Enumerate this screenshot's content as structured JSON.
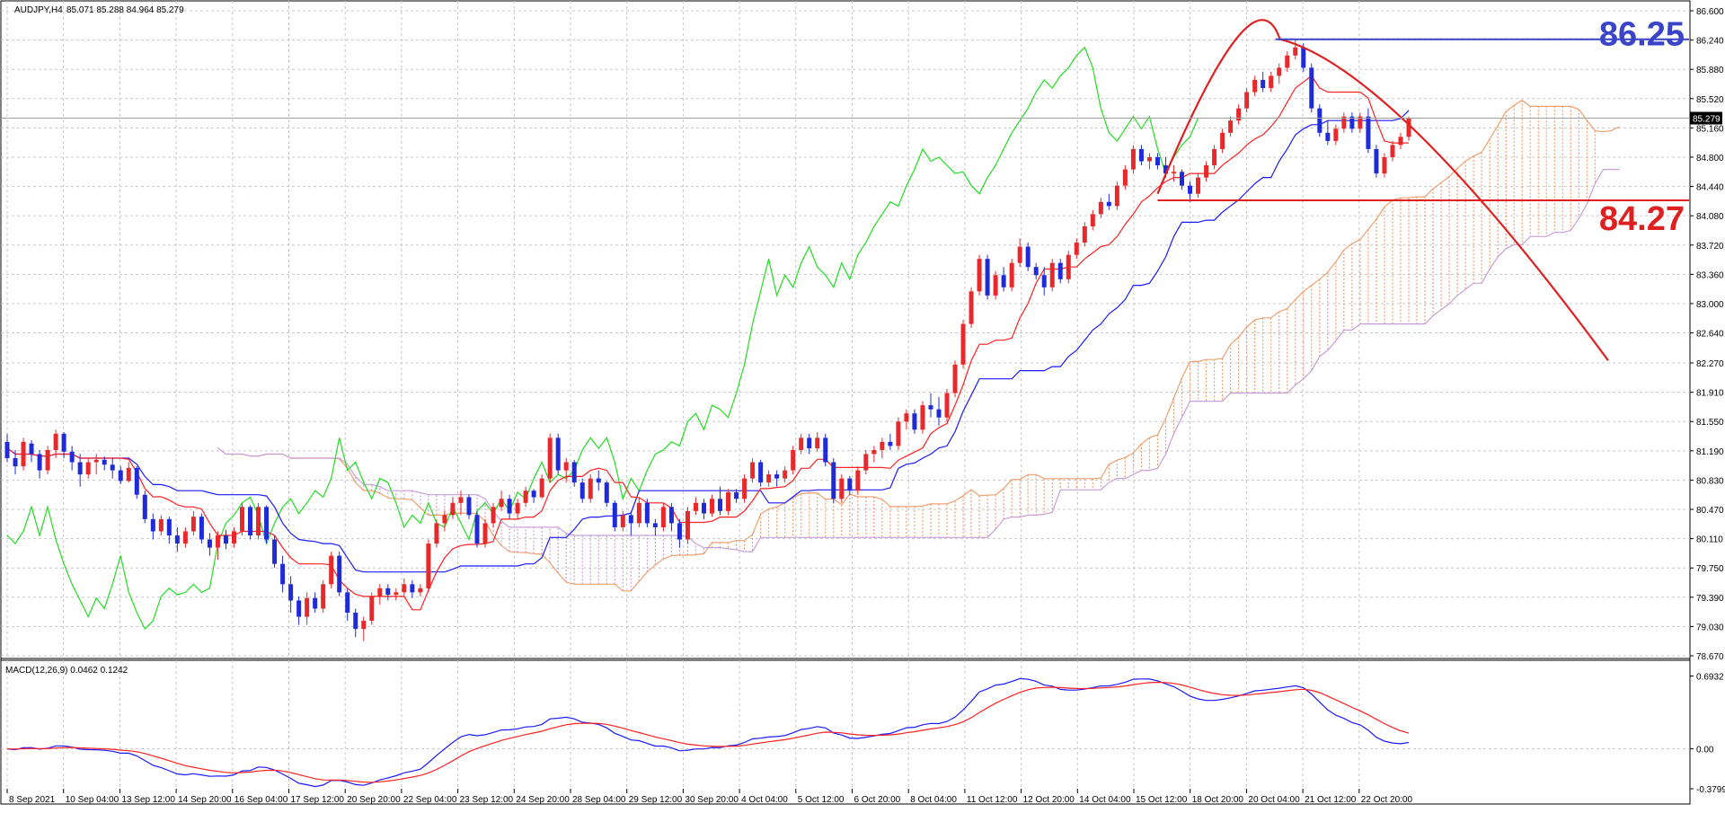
{
  "chart_data": {
    "type": "candlestick",
    "symbol_header": "AUDJPY,H4",
    "ohlc_header": "85.071 85.288 84.964 85.279",
    "current_price_label": "85.279",
    "price_axis": {
      "range": [
        78.67,
        86.6
      ],
      "tick_labels": [
        "86.600",
        "86.240",
        "85.880",
        "85.520",
        "85.160",
        "84.800",
        "84.440",
        "84.080",
        "83.720",
        "83.360",
        "83.000",
        "82.640",
        "82.270",
        "81.910",
        "81.550",
        "81.190",
        "80.830",
        "80.470",
        "80.110",
        "79.750",
        "79.390",
        "79.030",
        "78.670"
      ]
    },
    "time_axis": {
      "tick_labels": [
        "8 Sep 2021",
        "10 Sep 04:00",
        "13 Sep 12:00",
        "14 Sep 20:00",
        "16 Sep 04:00",
        "17 Sep 12:00",
        "20 Sep 20:00",
        "22 Sep 04:00",
        "23 Sep 12:00",
        "24 Sep 20:00",
        "28 Sep 04:00",
        "29 Sep 12:00",
        "30 Sep 20:00",
        "4 Oct 04:00",
        "5 Oct 12:00",
        "6 Oct 20:00",
        "8 Oct 04:00",
        "11 Oct 12:00",
        "12 Oct 20:00",
        "14 Oct 04:00",
        "15 Oct 12:00",
        "18 Oct 20:00",
        "20 Oct 04:00",
        "21 Oct 12:00",
        "22 Oct 20:00"
      ]
    },
    "bull_color": "#e8282b",
    "bear_color": "#1f2bd8",
    "ichimoku_colors": {
      "tenkan": "#ff2020",
      "kijun": "#1a1aff",
      "chikou": "#22dd22",
      "cloud_up": "#f0a070",
      "cloud_down": "#c8a0d8"
    },
    "candles": [
      [
        81.3,
        81.4,
        81.05,
        81.1
      ],
      [
        81.1,
        81.2,
        80.9,
        81.0
      ],
      [
        81.0,
        81.35,
        80.95,
        81.3
      ],
      [
        81.28,
        81.32,
        81.05,
        81.15
      ],
      [
        81.15,
        81.2,
        80.85,
        80.95
      ],
      [
        80.95,
        81.25,
        80.9,
        81.2
      ],
      [
        81.2,
        81.45,
        81.1,
        81.4
      ],
      [
        81.4,
        81.42,
        81.1,
        81.18
      ],
      [
        81.18,
        81.25,
        80.95,
        81.05
      ],
      [
        81.05,
        81.15,
        80.75,
        80.9
      ],
      [
        80.9,
        81.1,
        80.85,
        81.05
      ],
      [
        81.05,
        81.15,
        80.9,
        81.08
      ],
      [
        81.08,
        81.12,
        80.95,
        81.02
      ],
      [
        81.02,
        81.1,
        80.85,
        80.95
      ],
      [
        80.95,
        81.0,
        80.78,
        80.82
      ],
      [
        80.82,
        81.05,
        80.8,
        80.98
      ],
      [
        80.98,
        81.0,
        80.6,
        80.65
      ],
      [
        80.65,
        80.7,
        80.3,
        80.35
      ],
      [
        80.35,
        80.42,
        80.1,
        80.2
      ],
      [
        80.2,
        80.4,
        80.15,
        80.35
      ],
      [
        80.35,
        80.38,
        80.05,
        80.15
      ],
      [
        80.15,
        80.25,
        79.95,
        80.05
      ],
      [
        80.05,
        80.25,
        80.0,
        80.2
      ],
      [
        80.2,
        80.45,
        80.15,
        80.38
      ],
      [
        80.38,
        80.42,
        80.05,
        80.1
      ],
      [
        80.1,
        80.18,
        79.9,
        80.0
      ],
      [
        80.0,
        80.2,
        79.85,
        80.15
      ],
      [
        80.15,
        80.22,
        79.98,
        80.05
      ],
      [
        80.05,
        80.25,
        80.0,
        80.2
      ],
      [
        80.2,
        80.55,
        80.15,
        80.5
      ],
      [
        80.5,
        80.52,
        80.1,
        80.15
      ],
      [
        80.15,
        80.55,
        80.1,
        80.5
      ],
      [
        80.5,
        80.52,
        80.05,
        80.1
      ],
      [
        80.1,
        80.15,
        79.75,
        79.8
      ],
      [
        79.8,
        79.9,
        79.45,
        79.55
      ],
      [
        79.55,
        79.65,
        79.2,
        79.35
      ],
      [
        79.35,
        79.4,
        79.05,
        79.15
      ],
      [
        79.15,
        79.45,
        79.05,
        79.38
      ],
      [
        79.38,
        79.45,
        79.2,
        79.25
      ],
      [
        79.25,
        79.6,
        79.2,
        79.55
      ],
      [
        79.55,
        79.95,
        79.5,
        79.9
      ],
      [
        79.9,
        79.95,
        79.4,
        79.45
      ],
      [
        79.45,
        79.5,
        79.1,
        79.2
      ],
      [
        79.2,
        79.25,
        78.9,
        79.0
      ],
      [
        79.0,
        79.15,
        78.85,
        79.1
      ],
      [
        79.1,
        79.45,
        79.05,
        79.4
      ],
      [
        79.4,
        79.55,
        79.3,
        79.5
      ],
      [
        79.5,
        79.55,
        79.35,
        79.42
      ],
      [
        79.42,
        79.5,
        79.35,
        79.45
      ],
      [
        79.45,
        79.62,
        79.4,
        79.55
      ],
      [
        79.55,
        79.6,
        79.38,
        79.45
      ],
      [
        79.45,
        79.55,
        79.4,
        79.5
      ],
      [
        79.5,
        80.1,
        79.45,
        80.05
      ],
      [
        80.05,
        80.35,
        80.0,
        80.3
      ],
      [
        80.3,
        80.45,
        80.2,
        80.4
      ],
      [
        80.4,
        80.62,
        80.35,
        80.55
      ],
      [
        80.55,
        80.7,
        80.4,
        80.62
      ],
      [
        80.62,
        80.65,
        80.35,
        80.4
      ],
      [
        80.4,
        80.45,
        80.0,
        80.05
      ],
      [
        80.05,
        80.35,
        80.0,
        80.3
      ],
      [
        80.3,
        80.55,
        80.25,
        80.5
      ],
      [
        80.5,
        80.7,
        80.45,
        80.6
      ],
      [
        80.6,
        80.65,
        80.35,
        80.42
      ],
      [
        80.42,
        80.6,
        80.35,
        80.55
      ],
      [
        80.55,
        80.75,
        80.5,
        80.7
      ],
      [
        80.7,
        80.72,
        80.55,
        80.62
      ],
      [
        80.62,
        80.9,
        80.6,
        80.85
      ],
      [
        80.85,
        81.4,
        80.8,
        81.35
      ],
      [
        81.35,
        81.4,
        80.9,
        80.95
      ],
      [
        80.95,
        81.1,
        80.8,
        81.05
      ],
      [
        81.05,
        81.08,
        80.75,
        80.8
      ],
      [
        80.8,
        80.85,
        80.55,
        80.6
      ],
      [
        80.6,
        80.9,
        80.55,
        80.85
      ],
      [
        80.85,
        80.95,
        80.7,
        80.8
      ],
      [
        80.8,
        80.82,
        80.5,
        80.55
      ],
      [
        80.55,
        80.58,
        80.2,
        80.25
      ],
      [
        80.25,
        80.45,
        80.2,
        80.4
      ],
      [
        80.4,
        80.45,
        80.15,
        80.3
      ],
      [
        80.3,
        80.62,
        80.25,
        80.55
      ],
      [
        80.55,
        80.6,
        80.25,
        80.3
      ],
      [
        80.3,
        80.35,
        80.15,
        80.25
      ],
      [
        80.25,
        80.55,
        80.2,
        80.5
      ],
      [
        80.5,
        80.55,
        80.2,
        80.3
      ],
      [
        80.3,
        80.35,
        80.0,
        80.1
      ],
      [
        80.1,
        80.5,
        80.05,
        80.45
      ],
      [
        80.45,
        80.62,
        80.4,
        80.55
      ],
      [
        80.55,
        80.6,
        80.35,
        80.42
      ],
      [
        80.42,
        80.65,
        80.38,
        80.6
      ],
      [
        80.6,
        80.75,
        80.4,
        80.45
      ],
      [
        80.45,
        80.72,
        80.4,
        80.68
      ],
      [
        80.68,
        80.72,
        80.55,
        80.6
      ],
      [
        80.6,
        80.9,
        80.55,
        80.85
      ],
      [
        80.85,
        81.1,
        80.8,
        81.05
      ],
      [
        81.05,
        81.08,
        80.75,
        80.8
      ],
      [
        80.8,
        80.95,
        80.75,
        80.9
      ],
      [
        80.9,
        80.95,
        80.75,
        80.85
      ],
      [
        80.85,
        81.0,
        80.8,
        80.95
      ],
      [
        80.95,
        81.25,
        80.9,
        81.2
      ],
      [
        81.2,
        81.4,
        81.15,
        81.35
      ],
      [
        81.35,
        81.4,
        81.15,
        81.22
      ],
      [
        81.22,
        81.42,
        81.18,
        81.35
      ],
      [
        81.35,
        81.4,
        81.0,
        81.05
      ],
      [
        81.05,
        81.1,
        80.55,
        80.6
      ],
      [
        80.6,
        80.9,
        80.55,
        80.85
      ],
      [
        80.85,
        80.88,
        80.65,
        80.7
      ],
      [
        80.7,
        81.0,
        80.65,
        80.95
      ],
      [
        80.95,
        81.2,
        80.9,
        81.15
      ],
      [
        81.15,
        81.25,
        81.05,
        81.2
      ],
      [
        81.2,
        81.35,
        81.1,
        81.3
      ],
      [
        81.3,
        81.4,
        81.2,
        81.25
      ],
      [
        81.25,
        81.6,
        81.2,
        81.55
      ],
      [
        81.55,
        81.7,
        81.45,
        81.65
      ],
      [
        81.65,
        81.7,
        81.4,
        81.45
      ],
      [
        81.45,
        81.8,
        81.4,
        81.75
      ],
      [
        81.75,
        81.9,
        81.6,
        81.7
      ],
      [
        81.7,
        81.85,
        81.5,
        81.6
      ],
      [
        81.6,
        81.95,
        81.55,
        81.9
      ],
      [
        81.9,
        82.3,
        81.85,
        82.25
      ],
      [
        82.25,
        82.8,
        82.2,
        82.75
      ],
      [
        82.75,
        83.2,
        82.7,
        83.15
      ],
      [
        83.15,
        83.6,
        83.1,
        83.55
      ],
      [
        83.55,
        83.6,
        83.05,
        83.1
      ],
      [
        83.1,
        83.4,
        83.05,
        83.35
      ],
      [
        83.35,
        83.45,
        83.15,
        83.2
      ],
      [
        83.2,
        83.55,
        83.15,
        83.5
      ],
      [
        83.5,
        83.8,
        83.45,
        83.7
      ],
      [
        83.7,
        83.75,
        83.4,
        83.45
      ],
      [
        83.45,
        83.5,
        83.3,
        83.35
      ],
      [
        83.35,
        83.45,
        83.1,
        83.2
      ],
      [
        83.2,
        83.55,
        83.15,
        83.5
      ],
      [
        83.5,
        83.55,
        83.25,
        83.3
      ],
      [
        83.3,
        83.65,
        83.25,
        83.6
      ],
      [
        83.6,
        83.8,
        83.55,
        83.75
      ],
      [
        83.75,
        84.0,
        83.7,
        83.95
      ],
      [
        83.95,
        84.15,
        83.9,
        84.1
      ],
      [
        84.1,
        84.3,
        84.05,
        84.25
      ],
      [
        84.25,
        84.35,
        84.15,
        84.2
      ],
      [
        84.2,
        84.5,
        84.15,
        84.45
      ],
      [
        84.45,
        84.7,
        84.4,
        84.65
      ],
      [
        84.65,
        84.95,
        84.6,
        84.9
      ],
      [
        84.9,
        84.95,
        84.7,
        84.75
      ],
      [
        84.75,
        84.85,
        84.65,
        84.8
      ],
      [
        84.8,
        84.85,
        84.65,
        84.7
      ],
      [
        84.7,
        84.8,
        84.55,
        84.6
      ],
      [
        84.6,
        84.7,
        84.5,
        84.62
      ],
      [
        84.62,
        84.65,
        84.4,
        84.45
      ],
      [
        84.45,
        84.5,
        84.25,
        84.35
      ],
      [
        84.35,
        84.6,
        84.3,
        84.55
      ],
      [
        84.55,
        84.75,
        84.5,
        84.7
      ],
      [
        84.7,
        84.95,
        84.65,
        84.9
      ],
      [
        84.9,
        85.15,
        84.85,
        85.1
      ],
      [
        85.1,
        85.3,
        85.05,
        85.25
      ],
      [
        85.25,
        85.45,
        85.2,
        85.4
      ],
      [
        85.4,
        85.65,
        85.35,
        85.6
      ],
      [
        85.6,
        85.8,
        85.55,
        85.75
      ],
      [
        85.75,
        85.85,
        85.6,
        85.65
      ],
      [
        85.65,
        85.85,
        85.6,
        85.8
      ],
      [
        85.8,
        85.95,
        85.7,
        85.9
      ],
      [
        85.9,
        86.1,
        85.85,
        86.05
      ],
      [
        86.05,
        86.25,
        86.0,
        86.15
      ],
      [
        86.15,
        86.2,
        85.85,
        85.9
      ],
      [
        85.9,
        85.95,
        85.35,
        85.4
      ],
      [
        85.4,
        85.45,
        85.05,
        85.1
      ],
      [
        85.1,
        85.25,
        84.95,
        85.0
      ],
      [
        85.0,
        85.2,
        84.95,
        85.15
      ],
      [
        85.15,
        85.35,
        85.1,
        85.3
      ],
      [
        85.3,
        85.35,
        85.1,
        85.15
      ],
      [
        85.15,
        85.35,
        85.1,
        85.3
      ],
      [
        85.3,
        85.4,
        84.85,
        84.9
      ],
      [
        84.9,
        84.95,
        84.55,
        84.6
      ],
      [
        84.6,
        84.85,
        84.55,
        84.8
      ],
      [
        84.8,
        85.0,
        84.75,
        84.95
      ],
      [
        84.95,
        85.1,
        84.9,
        85.05
      ],
      [
        85.05,
        85.3,
        85.0,
        85.28
      ]
    ],
    "annotations": [
      {
        "label": "86.25",
        "price": 86.25,
        "color": "#3a44c8"
      },
      {
        "label": "84.27",
        "price": 84.27,
        "color": "#e02020"
      }
    ],
    "macd": {
      "label": "MACD(12,26,9) 0.0462 0.1242",
      "range": [
        -0.3799,
        0.8
      ],
      "tick_labels": [
        "0.6932",
        "0.00",
        "-0.3799"
      ],
      "line_color": "#ff2020",
      "signal_color": "#1a1aff"
    }
  }
}
